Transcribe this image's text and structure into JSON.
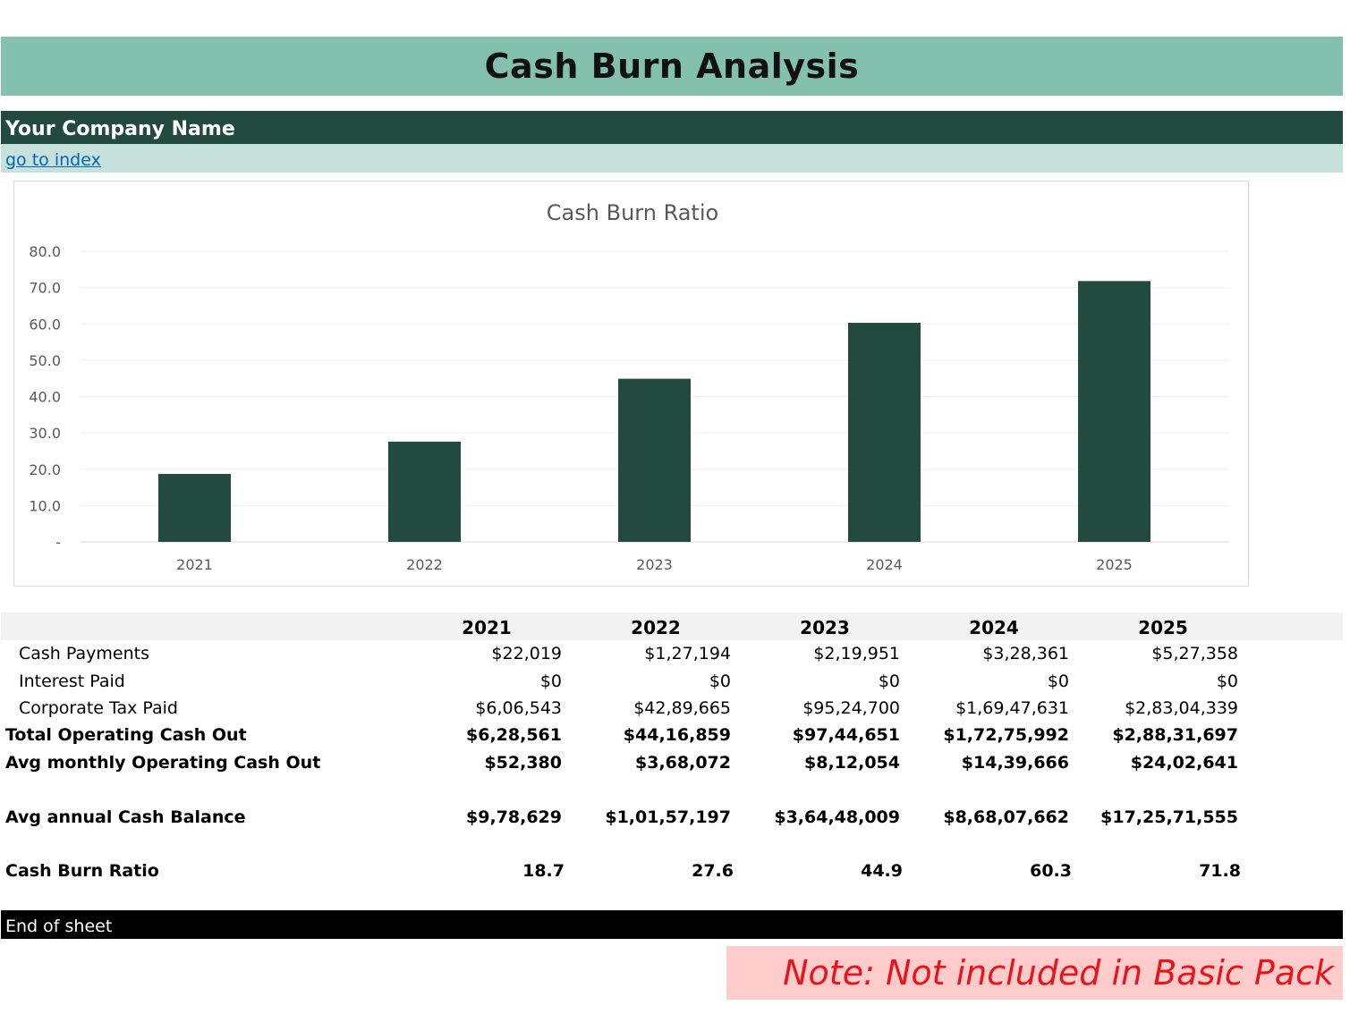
{
  "header": {
    "title": "Cash Burn Analysis",
    "company": "Your Company Name",
    "index_link": "go to index"
  },
  "chart_data": {
    "type": "bar",
    "title": "Cash Burn Ratio",
    "categories": [
      "2021",
      "2022",
      "2023",
      "2024",
      "2025"
    ],
    "values": [
      18.7,
      27.6,
      44.9,
      60.3,
      71.8
    ],
    "ylim": [
      0,
      80
    ],
    "yticks": [
      "-",
      "10.0",
      "20.0",
      "30.0",
      "40.0",
      "50.0",
      "60.0",
      "70.0",
      "80.0"
    ],
    "grid": true,
    "bar_color": "#234a3f"
  },
  "table": {
    "years": [
      "2021",
      "2022",
      "2023",
      "2024",
      "2025"
    ],
    "rows": [
      {
        "label": "Cash Payments",
        "values": [
          "$22,019",
          "$1,27,194",
          "$2,19,951",
          "$3,28,361",
          "$5,27,358"
        ]
      },
      {
        "label": "Interest Paid",
        "values": [
          "$0",
          "$0",
          "$0",
          "$0",
          "$0"
        ]
      },
      {
        "label": "Corporate Tax Paid",
        "values": [
          "$6,06,543",
          "$42,89,665",
          "$95,24,700",
          "$1,69,47,631",
          "$2,83,04,339"
        ]
      },
      {
        "label": "Total Operating Cash Out",
        "values": [
          "$6,28,561",
          "$44,16,859",
          "$97,44,651",
          "$1,72,75,992",
          "$2,88,31,697"
        ]
      },
      {
        "label": "Avg monthly Operating Cash Out",
        "values": [
          "$52,380",
          "$3,68,072",
          "$8,12,054",
          "$14,39,666",
          "$24,02,641"
        ]
      },
      {
        "label": "Avg annual Cash Balance",
        "values": [
          "$9,78,629",
          "$1,01,57,197",
          "$3,64,48,009",
          "$8,68,07,662",
          "$17,25,71,555"
        ]
      },
      {
        "label": "Cash Burn Ratio",
        "values": [
          "18.7",
          "27.6",
          "44.9",
          "60.3",
          "71.8"
        ]
      }
    ]
  },
  "footer": {
    "end_text": "End of sheet",
    "note": "Note: Not included in Basic Pack"
  }
}
